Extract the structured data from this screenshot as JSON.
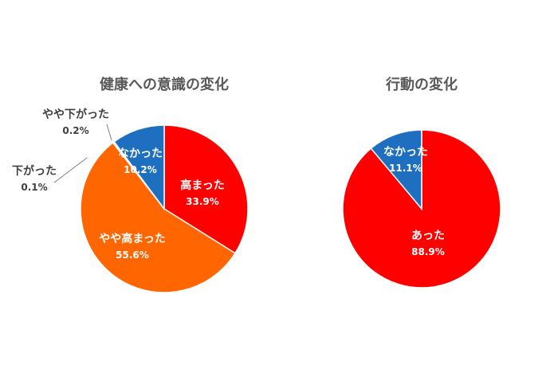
{
  "colors": {
    "red": "#FF0000",
    "orange": "#FF6600",
    "blue": "#1F6FC0",
    "slice_border": "#FFFFFF",
    "title_text": "#595959",
    "outside_label_text": "#404040",
    "inside_label_text": "#FFFFFF",
    "leader_line": "#808080"
  },
  "chart_data": [
    {
      "type": "pie",
      "title": "健康への意識の変化",
      "start": "12 o'clock",
      "direction": "clockwise",
      "slices": [
        {
          "label": "高まった",
          "value": 33.9,
          "value_text": "33.9%",
          "color": "red",
          "label_position": "inside"
        },
        {
          "label": "やや高まった",
          "value": 55.6,
          "value_text": "55.6%",
          "color": "orange",
          "label_position": "inside"
        },
        {
          "label": "下がった",
          "value": 0.1,
          "value_text": "0.1%",
          "color": "orange",
          "label_position": "outside-left"
        },
        {
          "label": "やや下がった",
          "value": 0.2,
          "value_text": "0.2%",
          "color": "orange",
          "label_position": "outside-top-left"
        },
        {
          "label": "なかった",
          "value": 10.2,
          "value_text": "10.2%",
          "color": "blue",
          "label_position": "inside"
        }
      ]
    },
    {
      "type": "pie",
      "title": "行動の変化",
      "start": "12 o'clock",
      "direction": "clockwise",
      "slices": [
        {
          "label": "あった",
          "value": 88.9,
          "value_text": "88.9%",
          "color": "red",
          "label_position": "inside"
        },
        {
          "label": "なかった",
          "value": 11.1,
          "value_text": "11.1%",
          "color": "blue",
          "label_position": "inside"
        }
      ]
    }
  ]
}
